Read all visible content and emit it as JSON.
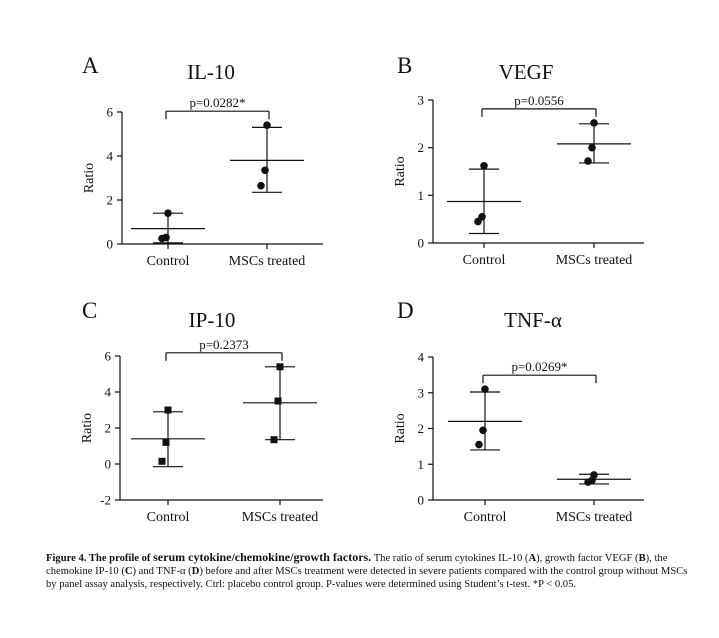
{
  "chart_data": [
    {
      "type": "scatter",
      "panel_letter": "A",
      "title": "IL-10",
      "ylabel": "Ratio",
      "categories": [
        "Control",
        "MSCs treated"
      ],
      "ylim": [
        0,
        6
      ],
      "yticks": [
        "0",
        "2",
        "4",
        "6"
      ],
      "significance_label": "p=0.0282*",
      "marker": "circle",
      "series": [
        {
          "points": [
            1.4,
            0.3,
            0.25
          ],
          "mean": 0.7,
          "sd_low": 0.05,
          "sd_high": 1.4
        },
        {
          "points": [
            5.4,
            3.35,
            2.65
          ],
          "mean": 3.8,
          "sd_low": 2.35,
          "sd_high": 5.3
        }
      ]
    },
    {
      "type": "scatter",
      "panel_letter": "B",
      "title": "VEGF",
      "ylabel": "Ratio",
      "categories": [
        "Control",
        "MSCs treated"
      ],
      "ylim": [
        0,
        3
      ],
      "yticks": [
        "0",
        "1",
        "2",
        "3"
      ],
      "significance_label": "p=0.0556",
      "marker": "circle",
      "series": [
        {
          "points": [
            1.62,
            0.55,
            0.45
          ],
          "mean": 0.87,
          "sd_low": 0.2,
          "sd_high": 1.55
        },
        {
          "points": [
            2.52,
            2.0,
            1.72
          ],
          "mean": 2.08,
          "sd_low": 1.68,
          "sd_high": 2.5
        }
      ]
    },
    {
      "type": "scatter",
      "panel_letter": "C",
      "title": "IP-10",
      "ylabel": "Ratio",
      "categories": [
        "Control",
        "MSCs treated"
      ],
      "ylim": [
        -2,
        6
      ],
      "yticks": [
        "-2",
        "0",
        "2",
        "4",
        "6"
      ],
      "significance_label": "p=0.2373",
      "marker": "square",
      "series": [
        {
          "points": [
            3.0,
            1.2,
            0.15
          ],
          "mean": 1.4,
          "sd_low": -0.15,
          "sd_high": 2.9
        },
        {
          "points": [
            5.4,
            3.5,
            1.35
          ],
          "mean": 3.4,
          "sd_low": 1.35,
          "sd_high": 5.4
        }
      ]
    },
    {
      "type": "scatter",
      "panel_letter": "D",
      "title": "TNF-α",
      "ylabel": "Ratio",
      "categories": [
        "Control",
        "MSCs treated"
      ],
      "ylim": [
        0,
        4
      ],
      "yticks": [
        "0",
        "1",
        "2",
        "3",
        "4"
      ],
      "significance_label": "p=0.0269*",
      "marker": "circle",
      "series": [
        {
          "points": [
            3.1,
            1.95,
            1.55
          ],
          "mean": 2.2,
          "sd_low": 1.4,
          "sd_high": 3.02
        },
        {
          "points": [
            0.7,
            0.55,
            0.5
          ],
          "mean": 0.58,
          "sd_low": 0.45,
          "sd_high": 0.72
        }
      ]
    }
  ],
  "caption": {
    "heading": "Figure 4. The profile of",
    "heading2": "serum cytokine/chemokine/growth factors.",
    "text_1": "The ratio of serum cytokines IL-10 (",
    "ref_a": "A",
    "text_2": "), growth factor VEGF (",
    "ref_b": "B",
    "text_3": "), the chemokine IP-10 (",
    "ref_c": "C",
    "text_4": ") and TNF-α (",
    "ref_d": "D",
    "text_5": ") before and after MSCs treatment were detected in severe patients compared with the control group without MSCs by panel assay analysis, respectively. Ctrl: placebo control group. P-values were determined using Student’s t-test. *P < 0.05."
  }
}
